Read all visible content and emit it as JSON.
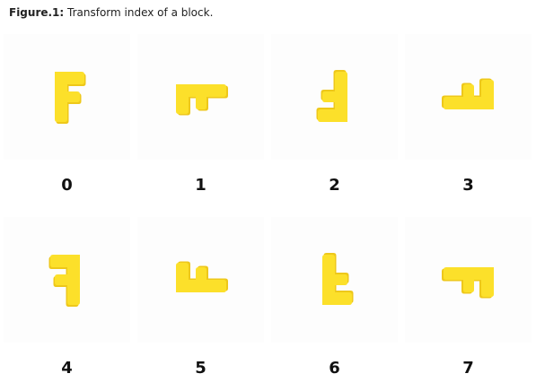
{
  "caption": {
    "label": "Figure.1:",
    "text": " Transform index of a block."
  },
  "block_color": "#FCE02A",
  "block_shadow_color": "#EEC81A",
  "block_piece": "F-shaped yellow clay block",
  "tiles": [
    {
      "index": "0",
      "rotation": 0,
      "mirror": false
    },
    {
      "index": "1",
      "rotation": 270,
      "mirror": true
    },
    {
      "index": "2",
      "rotation": 180,
      "mirror": false
    },
    {
      "index": "3",
      "rotation": 90,
      "mirror": true
    },
    {
      "index": "4",
      "rotation": 0,
      "mirror": true
    },
    {
      "index": "5",
      "rotation": 270,
      "mirror": false
    },
    {
      "index": "6",
      "rotation": 180,
      "mirror": true
    },
    {
      "index": "7",
      "rotation": 90,
      "mirror": false
    }
  ]
}
